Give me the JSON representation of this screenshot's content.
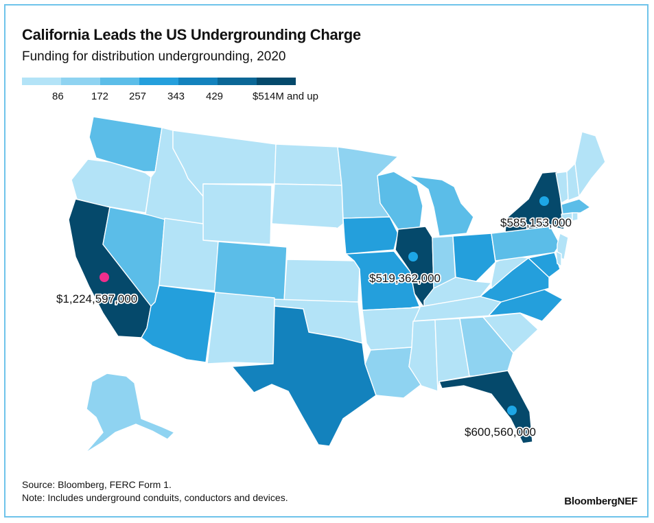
{
  "title": "California Leads the US Undergrounding Charge",
  "subtitle": "Funding for distribution undergrounding, 2020",
  "legend": {
    "colors": [
      "#b3e3f7",
      "#8fd3f1",
      "#5bbde8",
      "#249fdc",
      "#1382bd",
      "#0b6796",
      "#05496b"
    ],
    "labels": [
      "86",
      "172",
      "257",
      "343",
      "429",
      "$514M and up"
    ]
  },
  "callouts": {
    "california": "$1,224,597,000",
    "new_york": "$585,153,000",
    "illinois": "$519,362,000",
    "florida": "$600,560,000"
  },
  "colors": {
    "very_light": "#b3e3f7",
    "light": "#8fd3f1",
    "medium": "#5bbde8",
    "bright": "#249fdc",
    "dark": "#1382bd",
    "darkest": "#05496b",
    "no_data": "#ffffff",
    "marker_pink": "#ee2e8c",
    "marker_blue": "#1da6e6",
    "frame": "#6ec3ea"
  },
  "source": "Source: Bloomberg, FERC Form 1.",
  "note": "Note: Includes underground conduits, conductors and devices.",
  "brand": "BloombergNEF"
}
